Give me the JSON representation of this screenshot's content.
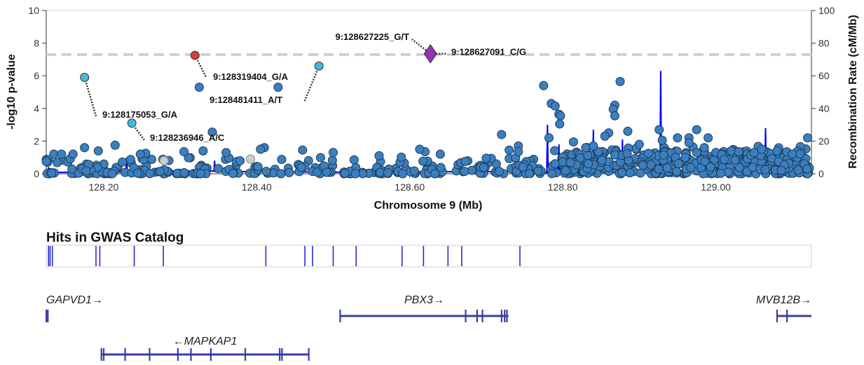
{
  "chart_data": {
    "type": "scatter",
    "xlabel": "Chromosome 9 (Mb)",
    "ylabel": "-log10 p-value",
    "y2label": "Recombination Rate (cM/Mb)",
    "xlim": [
      128.125,
      129.125
    ],
    "ylim": [
      0,
      10
    ],
    "y2lim": [
      0,
      100
    ],
    "xticks": [
      "128.20",
      "128.40",
      "128.60",
      "128.80",
      "129.00"
    ],
    "yticks": [
      "0",
      "2",
      "4",
      "6",
      "8",
      "10"
    ],
    "y2ticks": [
      "0",
      "20",
      "40",
      "60",
      "80",
      "100"
    ],
    "significance_line": 7.3,
    "colors": {
      "point": "#3a7fc0",
      "point_stroke": "#1f3a55",
      "lead": "#9632b8",
      "red": "#d43f3a",
      "cyan": "#46b8da",
      "grey": "#cccccc",
      "recomb": "#0000ff",
      "catalog": "#2a2acc",
      "gene": "#3b3ba6"
    },
    "lead_variant": {
      "label": "9:128627091_C/G",
      "x": 128.6271,
      "y": 7.35
    },
    "annotated_points": [
      {
        "label": "9:128627225_G/T",
        "x": 128.6272,
        "y": 7.35,
        "color": "red"
      },
      {
        "label": "9:128319404_G/A",
        "x": 128.3194,
        "y": 7.25,
        "color": "red"
      },
      {
        "label": "9:128481411_A/T",
        "x": 128.4814,
        "y": 6.6,
        "color": "cyan"
      },
      {
        "label": "9:128175053_G/A",
        "x": 128.1751,
        "y": 5.9,
        "color": "cyan"
      },
      {
        "label": "9:128236946_A/C",
        "x": 128.2369,
        "y": 3.1,
        "color": "cyan"
      }
    ],
    "highlight_points": [
      {
        "x": 128.325,
        "y": 5.3
      },
      {
        "x": 128.428,
        "y": 5.3
      },
      {
        "x": 128.342,
        "y": 2.55
      },
      {
        "x": 128.775,
        "y": 5.4
      },
      {
        "x": 128.785,
        "y": 4.3
      },
      {
        "x": 128.79,
        "y": 4.15
      },
      {
        "x": 128.795,
        "y": 3.65
      },
      {
        "x": 128.797,
        "y": 3.55
      },
      {
        "x": 128.796,
        "y": 3.05
      },
      {
        "x": 128.875,
        "y": 5.65
      },
      {
        "x": 128.868,
        "y": 4.2
      },
      {
        "x": 128.866,
        "y": 3.95
      },
      {
        "x": 128.868,
        "y": 3.55
      },
      {
        "x": 128.885,
        "y": 2.6
      },
      {
        "x": 128.926,
        "y": 2.7
      },
      {
        "x": 128.72,
        "y": 2.4
      },
      {
        "x": 128.782,
        "y": 2.2
      },
      {
        "x": 128.86,
        "y": 2.5
      },
      {
        "x": 128.855,
        "y": 2.3
      },
      {
        "x": 128.95,
        "y": 2.2
      },
      {
        "x": 128.965,
        "y": 2.2
      },
      {
        "x": 128.975,
        "y": 2.7
      },
      {
        "x": 128.99,
        "y": 2.2
      },
      {
        "x": 129.12,
        "y": 2.2
      },
      {
        "x": 128.965,
        "y": 1.9
      },
      {
        "x": 128.93,
        "y": 2.05
      },
      {
        "x": 128.814,
        "y": 1.95
      },
      {
        "x": 128.83,
        "y": 1.6
      },
      {
        "x": 128.84,
        "y": 1.7
      },
      {
        "x": 128.9,
        "y": 1.8
      },
      {
        "x": 128.912,
        "y": 1.25
      },
      {
        "x": 128.932,
        "y": 1.15
      },
      {
        "x": 128.96,
        "y": 1.0
      },
      {
        "x": 128.975,
        "y": 1.3
      },
      {
        "x": 128.985,
        "y": 1.6
      },
      {
        "x": 129.02,
        "y": 1.4
      },
      {
        "x": 129.03,
        "y": 1.35
      },
      {
        "x": 129.05,
        "y": 1.3
      },
      {
        "x": 129.06,
        "y": 1.5
      },
      {
        "x": 129.08,
        "y": 1.4
      },
      {
        "x": 129.1,
        "y": 1.2
      },
      {
        "x": 128.742,
        "y": 1.7
      },
      {
        "x": 128.742,
        "y": 1.35
      },
      {
        "x": 128.73,
        "y": 1.45
      },
      {
        "x": 128.7,
        "y": 0.95
      },
      {
        "x": 128.62,
        "y": 1.35
      },
      {
        "x": 128.613,
        "y": 1.5
      },
      {
        "x": 128.64,
        "y": 1.2
      },
      {
        "x": 128.56,
        "y": 1.1
      },
      {
        "x": 128.5,
        "y": 1.3
      },
      {
        "x": 128.46,
        "y": 1.45
      },
      {
        "x": 128.41,
        "y": 1.6
      },
      {
        "x": 128.405,
        "y": 1.5
      },
      {
        "x": 128.36,
        "y": 1.3
      },
      {
        "x": 128.33,
        "y": 1.4
      },
      {
        "x": 128.305,
        "y": 1.35
      },
      {
        "x": 128.215,
        "y": 1.75
      },
      {
        "x": 128.193,
        "y": 1.4
      },
      {
        "x": 128.175,
        "y": 1.6
      },
      {
        "x": 128.16,
        "y": 1.2
      },
      {
        "x": 128.255,
        "y": 1.25
      },
      {
        "x": 128.248,
        "y": 1.2
      },
      {
        "x": 128.135,
        "y": 1.2
      },
      {
        "x": 128.145,
        "y": 1.2
      },
      {
        "x": 128.125,
        "y": 0.75
      }
    ],
    "grey_points": [
      {
        "x": 128.279,
        "y": 0.8
      },
      {
        "x": 128.392,
        "y": 0.9
      }
    ],
    "recomb_peaks": [
      {
        "x": 128.128,
        "y": 4
      },
      {
        "x": 128.23,
        "y": 10
      },
      {
        "x": 128.345,
        "y": 8
      },
      {
        "x": 128.55,
        "y": 3
      },
      {
        "x": 128.735,
        "y": 4
      },
      {
        "x": 128.78,
        "y": 30
      },
      {
        "x": 128.795,
        "y": 18
      },
      {
        "x": 128.84,
        "y": 27
      },
      {
        "x": 128.878,
        "y": 21
      },
      {
        "x": 128.905,
        "y": 12
      },
      {
        "x": 128.928,
        "y": 63
      },
      {
        "x": 128.95,
        "y": 14
      },
      {
        "x": 128.985,
        "y": 15
      },
      {
        "x": 129.065,
        "y": 28
      },
      {
        "x": 129.11,
        "y": 6
      }
    ],
    "gwas_catalog": {
      "title": "Hits in GWAS Catalog",
      "positions": [
        128.128,
        128.13,
        128.133,
        128.19,
        128.195,
        128.24,
        128.278,
        128.412,
        128.463,
        128.473,
        128.5,
        128.53,
        128.59,
        128.618,
        128.65,
        128.668,
        128.744
      ]
    },
    "genes": [
      {
        "name": "GAPVD1",
        "label": "GAPVD1→",
        "start": 128.125,
        "end": 128.128,
        "row": 0,
        "exons": [
          128.125,
          128.127
        ]
      },
      {
        "name": "PBX3",
        "label": "PBX3→",
        "start": 128.509,
        "end": 128.729,
        "row": 0,
        "exons": [
          128.509,
          128.673,
          128.688,
          128.695,
          128.72,
          128.724,
          128.727
        ]
      },
      {
        "name": "MVB12B",
        "label": "MVB12B→",
        "start": 129.08,
        "end": 129.125,
        "row": 0,
        "exons": [
          129.08,
          129.093
        ]
      },
      {
        "name": "MAPKAP1",
        "label": "←MAPKAP1",
        "start": 128.197,
        "end": 128.468,
        "row": 1,
        "exons": [
          128.197,
          128.2,
          128.228,
          128.26,
          128.297,
          128.314,
          128.34,
          128.385,
          128.43,
          128.433,
          128.468
        ]
      }
    ]
  }
}
